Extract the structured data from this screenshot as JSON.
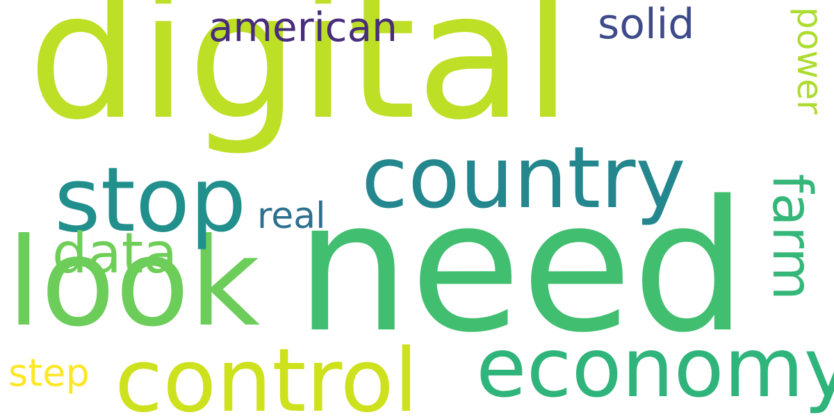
{
  "words": {
    "digital": {
      "text": "digital",
      "color": "#bddf26"
    },
    "need": {
      "text": "need",
      "color": "#42be71"
    },
    "look": {
      "text": "look",
      "color": "#6ccd5a"
    },
    "stop": {
      "text": "stop",
      "color": "#21908d"
    },
    "country": {
      "text": "country",
      "color": "#24878e"
    },
    "control": {
      "text": "control",
      "color": "#cde11d"
    },
    "economy": {
      "text": "economy",
      "color": "#2fb47c"
    },
    "farm": {
      "text": "farm",
      "color": "#35b779"
    },
    "data": {
      "text": "data",
      "color": "#6ece58"
    },
    "american": {
      "text": "american",
      "color": "#472d7b"
    },
    "solid": {
      "text": "solid",
      "color": "#3e4a89"
    },
    "power": {
      "text": "power",
      "color": "#addc30"
    },
    "real": {
      "text": "real",
      "color": "#2d708e"
    },
    "step": {
      "text": "step",
      "color": "#fde725"
    }
  }
}
